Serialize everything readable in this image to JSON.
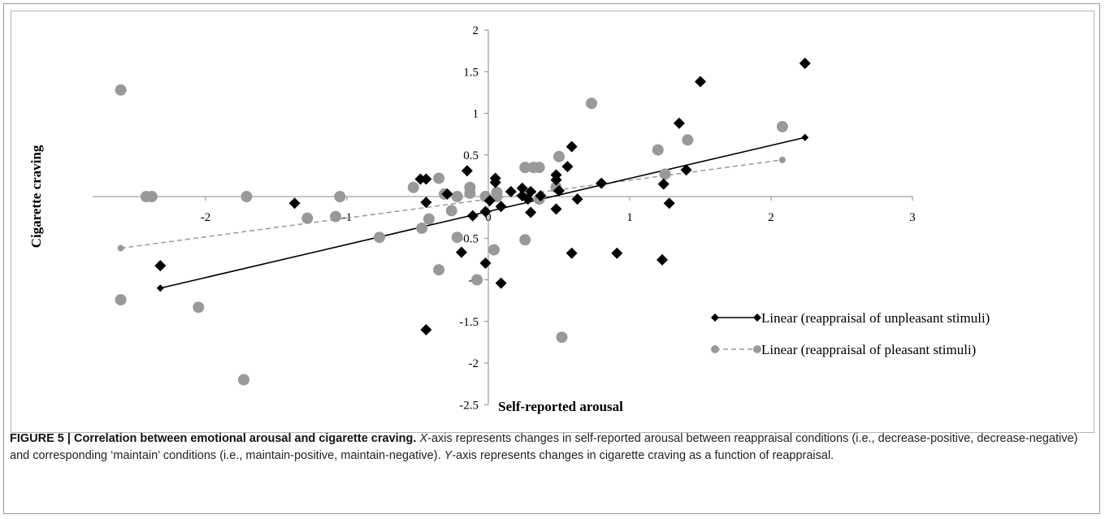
{
  "chart_data": {
    "type": "scatter",
    "xlabel": "Self-reported arousal",
    "ylabel": "Cigarette craving",
    "xlim": [
      -2.8,
      3
    ],
    "ylim": [
      -2.5,
      2
    ],
    "x_ticks": [
      -2,
      -1,
      0,
      1,
      2,
      3
    ],
    "x_tick_labels": [
      "-2",
      "-1",
      "0",
      "1",
      "2",
      "3"
    ],
    "y_ticks": [
      -2.5,
      -2,
      -1.5,
      -1,
      -0.5,
      0,
      0.5,
      1,
      1.5,
      2
    ],
    "y_tick_labels": [
      "-2.5",
      "-2",
      "-1.5",
      "-1",
      "-0.5",
      "0",
      "0.5",
      "1",
      "1.5",
      "2"
    ],
    "legend_position": "right",
    "series": [
      {
        "name": "Linear (reappraisal of unpleasant stimuli)",
        "marker": "diamond",
        "color": "#000000",
        "line_style": "solid",
        "trend": [
          [
            -2.32,
            -1.1
          ],
          [
            2.24,
            0.71
          ]
        ],
        "points": [
          [
            -2.32,
            -0.83
          ],
          [
            -1.37,
            -0.08
          ],
          [
            -0.44,
            0.21
          ],
          [
            -0.44,
            -0.07
          ],
          [
            -0.44,
            -1.6
          ],
          [
            -0.29,
            0.03
          ],
          [
            -0.19,
            -0.67
          ],
          [
            -0.15,
            0.31
          ],
          [
            -0.11,
            -0.23
          ],
          [
            -0.02,
            -0.18
          ],
          [
            -0.02,
            -0.8
          ],
          [
            0.01,
            -0.05
          ],
          [
            0.05,
            0.22
          ],
          [
            0.05,
            0.17
          ],
          [
            0.09,
            -1.04
          ],
          [
            0.09,
            -0.12
          ],
          [
            0.16,
            0.06
          ],
          [
            0.24,
            0.1
          ],
          [
            0.24,
            0.01
          ],
          [
            0.28,
            -0.03
          ],
          [
            0.3,
            0.06
          ],
          [
            0.3,
            -0.19
          ],
          [
            0.37,
            0.01
          ],
          [
            0.48,
            0.26
          ],
          [
            0.48,
            0.2
          ],
          [
            0.48,
            -0.15
          ],
          [
            0.5,
            0.07
          ],
          [
            0.56,
            0.36
          ],
          [
            0.59,
            0.6
          ],
          [
            0.59,
            -0.68
          ],
          [
            0.63,
            -0.03
          ],
          [
            0.8,
            0.16
          ],
          [
            0.91,
            -0.68
          ],
          [
            1.23,
            -0.76
          ],
          [
            1.24,
            0.15
          ],
          [
            1.28,
            -0.08
          ],
          [
            1.35,
            0.88
          ],
          [
            1.4,
            0.32
          ],
          [
            1.5,
            1.38
          ],
          [
            2.24,
            1.6
          ],
          [
            -0.48,
            0.21
          ]
        ]
      },
      {
        "name": "Linear (reappraisal of pleasant stimuli)",
        "marker": "circle",
        "color": "#999999",
        "line_style": "dashed",
        "trend": [
          [
            -2.6,
            -0.62
          ],
          [
            2.08,
            0.44
          ]
        ],
        "points": [
          [
            -2.6,
            1.28
          ],
          [
            -2.6,
            -1.24
          ],
          [
            -2.42,
            0.0
          ],
          [
            -2.38,
            0.0
          ],
          [
            -2.05,
            -1.33
          ],
          [
            -1.73,
            -2.2
          ],
          [
            -1.71,
            0.0
          ],
          [
            -1.28,
            -0.26
          ],
          [
            -1.05,
            0.0
          ],
          [
            -1.08,
            -0.24
          ],
          [
            -0.77,
            -0.49
          ],
          [
            -0.53,
            0.11
          ],
          [
            -0.47,
            -0.38
          ],
          [
            -0.42,
            -0.27
          ],
          [
            -0.35,
            0.22
          ],
          [
            -0.35,
            -0.88
          ],
          [
            -0.31,
            0.03
          ],
          [
            -0.26,
            -0.17
          ],
          [
            -0.22,
            0.0
          ],
          [
            -0.22,
            -0.49
          ],
          [
            -0.13,
            0.04
          ],
          [
            -0.13,
            0.11
          ],
          [
            -0.08,
            -1.0
          ],
          [
            -0.02,
            0.0
          ],
          [
            0.04,
            -0.64
          ],
          [
            0.06,
            0.05
          ],
          [
            0.06,
            0.0
          ],
          [
            0.26,
            0.35
          ],
          [
            0.26,
            -0.52
          ],
          [
            0.32,
            0.35
          ],
          [
            0.36,
            0.35
          ],
          [
            0.36,
            -0.03
          ],
          [
            0.48,
            0.11
          ],
          [
            0.5,
            0.48
          ],
          [
            0.52,
            -1.69
          ],
          [
            0.73,
            1.12
          ],
          [
            1.2,
            0.56
          ],
          [
            1.25,
            0.27
          ],
          [
            1.41,
            0.68
          ],
          [
            2.08,
            0.84
          ]
        ]
      }
    ]
  },
  "caption": {
    "figure_label": "FIGURE 5 | Correlation between emotional arousal and cigarette craving.",
    "x_axis_var": "X",
    "text_1": "-axis represents changes in self-reported arousal between reappraisal conditions (i.e., decrease-positive, decrease-negative) and corresponding ‘maintain’ conditions (i.e., maintain-positive, maintain-negative). ",
    "y_axis_var": "Y",
    "text_2": "-axis represents changes in cigarette craving as a function of reappraisal."
  }
}
